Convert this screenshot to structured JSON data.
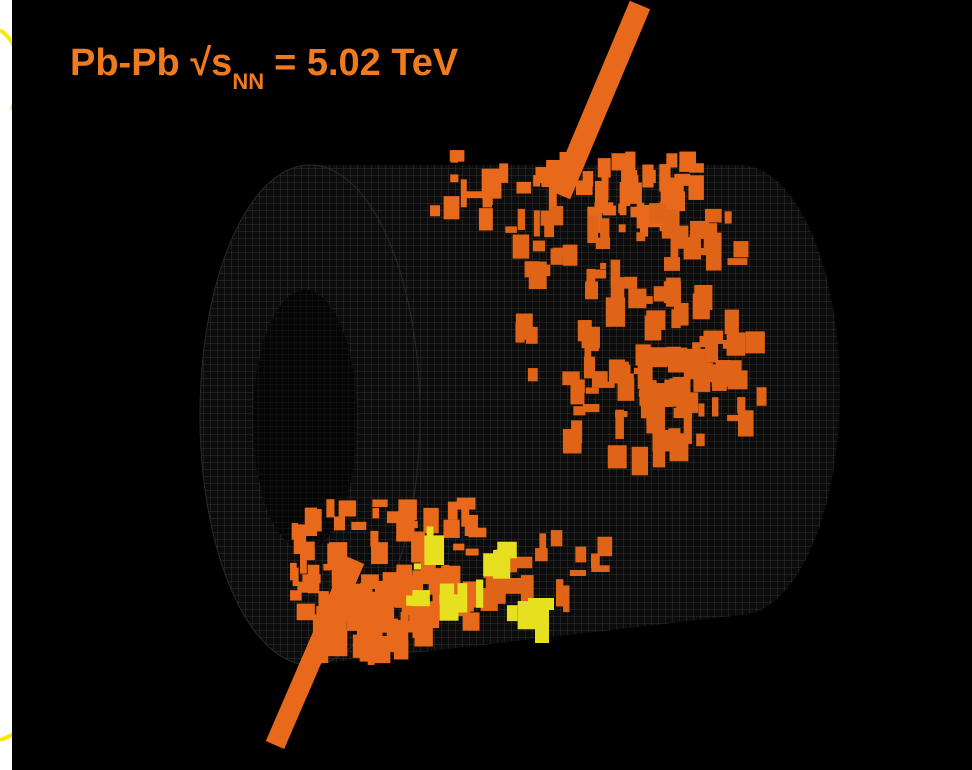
{
  "title": {
    "main": "Pb-Pb √s",
    "subscript": "NN",
    "rest": "= 5.02 TeV"
  }
}
